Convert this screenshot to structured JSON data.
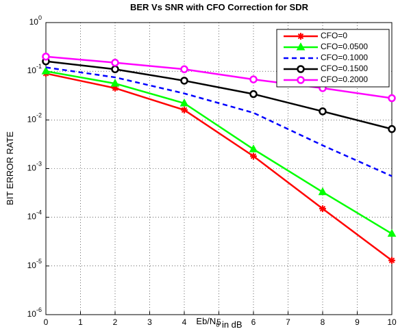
{
  "chart_data": {
    "type": "line",
    "title": "BER Vs SNR with CFO Correction for SDR",
    "xlabel": "Eb/N_0 in dB",
    "ylabel": "BIT ERROR RATE",
    "x": [
      0,
      2,
      4,
      6,
      8,
      10
    ],
    "series": [
      {
        "name": "CFO=0",
        "color": "#ff0000",
        "marker": "asterisk",
        "linestyle": "solid",
        "values": [
          0.09,
          0.045,
          0.016,
          0.0018,
          0.00015,
          1.3e-05
        ]
      },
      {
        "name": "CFO=0.0500",
        "color": "#00ff00",
        "marker": "triangle",
        "linestyle": "solid",
        "values": [
          0.1,
          0.056,
          0.022,
          0.0025,
          0.00033,
          4.6e-05
        ]
      },
      {
        "name": "CFO=0.1000",
        "color": "#0000ff",
        "marker": "none",
        "linestyle": "dashed",
        "values": [
          0.12,
          0.075,
          0.035,
          0.014,
          0.003,
          0.0007
        ]
      },
      {
        "name": "CFO=0.1500",
        "color": "#000000",
        "marker": "circle",
        "linestyle": "solid",
        "values": [
          0.16,
          0.11,
          0.064,
          0.034,
          0.015,
          0.0065
        ]
      },
      {
        "name": "CFO=0.2000",
        "color": "#ff00ff",
        "marker": "circle",
        "linestyle": "solid",
        "values": [
          0.2,
          0.15,
          0.11,
          0.068,
          0.045,
          0.028
        ]
      }
    ],
    "xlim": [
      0,
      10
    ],
    "xticks": [
      0,
      1,
      2,
      3,
      4,
      5,
      6,
      7,
      8,
      9,
      10
    ],
    "ylim": [
      1e-06,
      1
    ],
    "ylog": true,
    "yticks": [
      {
        "value": 1e-06,
        "label": "10^-6"
      },
      {
        "value": 1e-05,
        "label": "10^-5"
      },
      {
        "value": 0.0001,
        "label": "10^-4"
      },
      {
        "value": 0.001,
        "label": "10^-3"
      },
      {
        "value": 0.01,
        "label": "10^-2"
      },
      {
        "value": 0.1,
        "label": "10^-1"
      },
      {
        "value": 1,
        "label": "10^0"
      }
    ],
    "grid": true,
    "legend": "upper right"
  }
}
